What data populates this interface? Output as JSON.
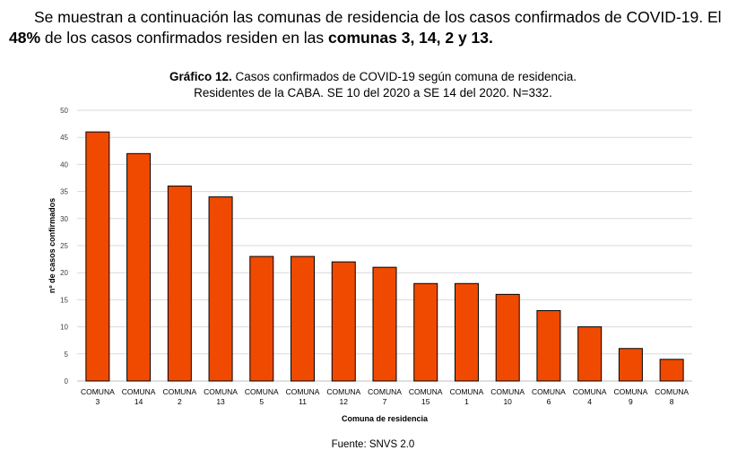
{
  "intro": {
    "part1": "Se muestran a continuación las comunas de residencia de los casos confirmados de COVID-19. El ",
    "pct": "48%",
    "part2": " de los casos confirmados residen en las ",
    "comunas": "comunas 3, 14, 2 y 13",
    "part3": "."
  },
  "chart_header": {
    "label": "Gráfico 12.",
    "title_rest": " Casos confirmados de COVID-19 según comuna de residencia.",
    "subtitle": "Residentes de la CABA. SE 10 del 2020 a SE 14 del 2020. N=332."
  },
  "chart_data": {
    "type": "bar",
    "title": "Gráfico 12. Casos confirmados de COVID-19 según comuna de residencia.",
    "subtitle": "Residentes de la CABA. SE 10 del 2020 a SE 14 del 2020. N=332.",
    "category_prefix": "COMUNA",
    "categories": [
      "3",
      "14",
      "2",
      "13",
      "5",
      "11",
      "12",
      "7",
      "15",
      "1",
      "10",
      "6",
      "4",
      "9",
      "8"
    ],
    "values": [
      46,
      42,
      36,
      34,
      23,
      23,
      22,
      21,
      18,
      18,
      16,
      13,
      10,
      6,
      4
    ],
    "xlabel": "Comuna de residencia",
    "ylabel": "nº de casos confirmados",
    "ylim": [
      0,
      50
    ],
    "yticks": [
      0,
      5,
      10,
      15,
      20,
      25,
      30,
      35,
      40,
      45,
      50
    ],
    "grid": true,
    "legend": "none",
    "bar_color": "#f04a00",
    "bar_stroke": "#000000"
  },
  "source": "Fuente: SNVS 2.0"
}
